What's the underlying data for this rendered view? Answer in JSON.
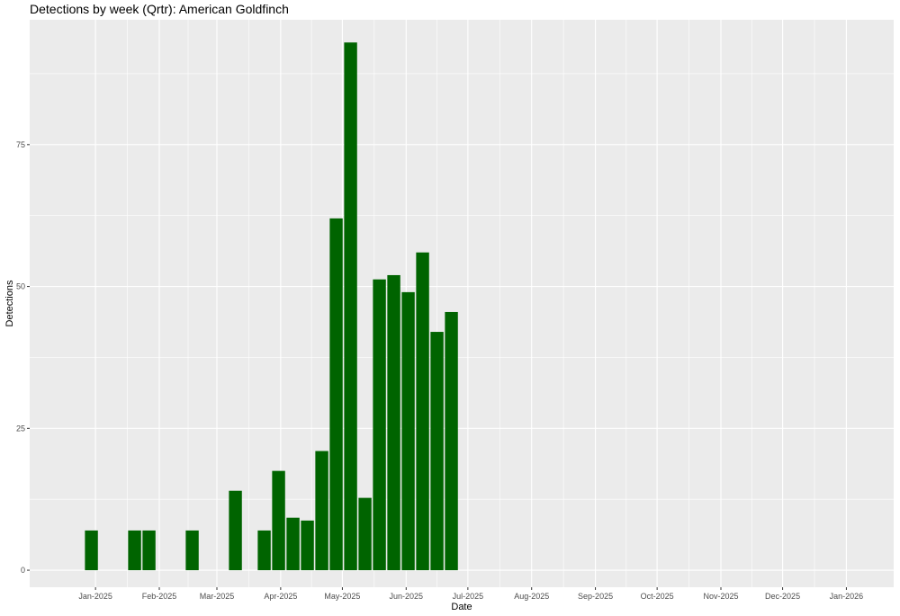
{
  "chart_data": {
    "type": "bar",
    "title": "Detections by week (Qrtr): American Goldfinch",
    "xlabel": "Date",
    "ylabel": "Detections",
    "ylim": [
      -3,
      97
    ],
    "xlim": [
      "2024-11-30",
      "2026-01-24"
    ],
    "bar_color": "#006400",
    "panel_color": "#EBEBEB",
    "grid_color": "#FFFFFF",
    "grid": true,
    "legend": "none",
    "y_ticks": [
      0,
      25,
      50,
      75
    ],
    "y_tick_labels": [
      "0",
      "25",
      "50",
      "75"
    ],
    "x_ticks": [
      "2025-01-01",
      "2025-02-01",
      "2025-03-01",
      "2025-04-01",
      "2025-05-01",
      "2025-06-01",
      "2025-07-01",
      "2025-08-01",
      "2025-09-01",
      "2025-10-01",
      "2025-11-01",
      "2025-12-01",
      "2026-01-01"
    ],
    "x_tick_labels": [
      "Jan-2025",
      "Feb-2025",
      "Mar-2025",
      "Apr-2025",
      "May-2025",
      "Jun-2025",
      "Jul-2025",
      "Aug-2025",
      "Sep-2025",
      "Oct-2025",
      "Nov-2025",
      "Dec-2025",
      "Jan-2026"
    ],
    "x": [
      "2024-12-30",
      "2025-01-20",
      "2025-01-27",
      "2025-02-17",
      "2025-03-10",
      "2025-03-24",
      "2025-03-31",
      "2025-04-07",
      "2025-04-14",
      "2025-04-21",
      "2025-04-28",
      "2025-05-05",
      "2025-05-12",
      "2025-05-19",
      "2025-05-26",
      "2025-06-02",
      "2025-06-09",
      "2025-06-16",
      "2025-06-23"
    ],
    "values": [
      7,
      7,
      7,
      7,
      14,
      7,
      17.5,
      9.25,
      8.75,
      21,
      62,
      93,
      12.75,
      51.25,
      52,
      49,
      56,
      42,
      45.5
    ]
  }
}
